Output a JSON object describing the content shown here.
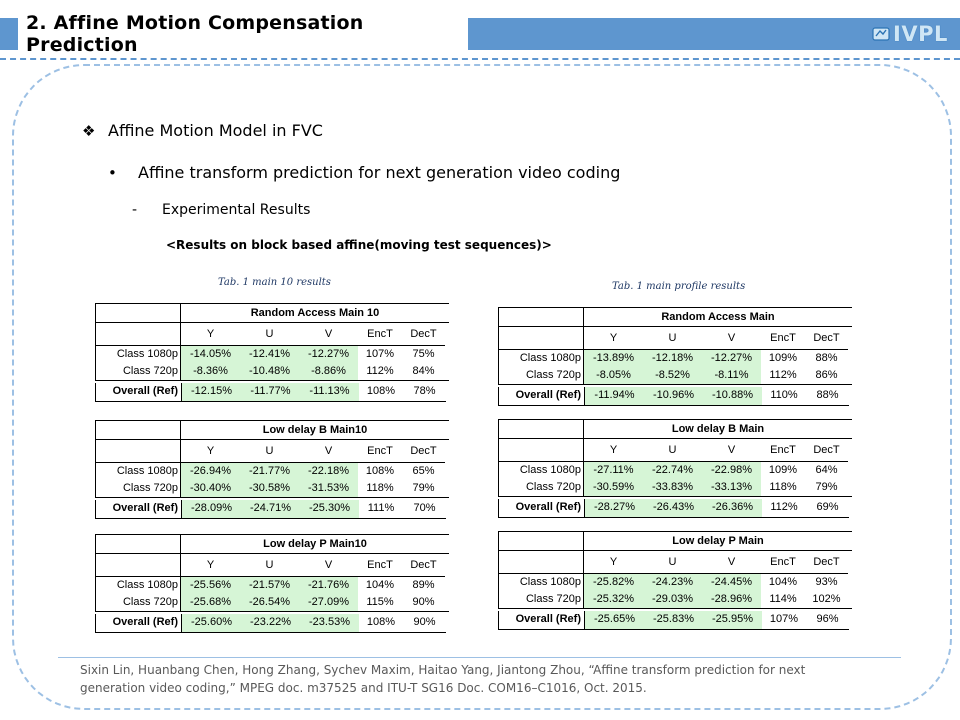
{
  "header": {
    "title": "2. Affine Motion Compensation Prediction",
    "logo": "IVPL",
    "accent_color": "#5e96cf"
  },
  "bullets": {
    "level1": {
      "mark": "❖",
      "text": "Affine Motion Model in FVC"
    },
    "level2": {
      "mark": "•",
      "text": "Affine transform prediction for next generation video coding"
    },
    "level3": {
      "mark": "-",
      "text": "Experimental Results"
    },
    "subhead": "<Results on block based affine(moving test sequences)>"
  },
  "captions": {
    "left": "Tab. 1 main 10 results",
    "right": "Tab. 1 main profile results"
  },
  "columns": [
    "Y",
    "U",
    "V",
    "EncT",
    "DecT"
  ],
  "tables": [
    {
      "name": "Random Access Main 10",
      "rows": [
        {
          "label": "Class 1080p",
          "values": [
            "-14.05%",
            "-12.41%",
            "-12.27%",
            "107%",
            "75%"
          ]
        },
        {
          "label": "Class 720p",
          "values": [
            "-8.36%",
            "-10.48%",
            "-8.86%",
            "112%",
            "84%"
          ]
        }
      ],
      "overall": {
        "label": "Overall (Ref)",
        "values": [
          "-12.15%",
          "-11.77%",
          "-11.13%",
          "108%",
          "78%"
        ]
      }
    },
    {
      "name": "Random Access Main",
      "rows": [
        {
          "label": "Class 1080p",
          "values": [
            "-13.89%",
            "-12.18%",
            "-12.27%",
            "109%",
            "88%"
          ]
        },
        {
          "label": "Class 720p",
          "values": [
            "-8.05%",
            "-8.52%",
            "-8.11%",
            "112%",
            "86%"
          ]
        }
      ],
      "overall": {
        "label": "Overall (Ref)",
        "values": [
          "-11.94%",
          "-10.96%",
          "-10.88%",
          "110%",
          "88%"
        ]
      }
    },
    {
      "name": "Low delay B Main10",
      "rows": [
        {
          "label": "Class 1080p",
          "values": [
            "-26.94%",
            "-21.77%",
            "-22.18%",
            "108%",
            "65%"
          ]
        },
        {
          "label": "Class 720p",
          "values": [
            "-30.40%",
            "-30.58%",
            "-31.53%",
            "118%",
            "79%"
          ]
        }
      ],
      "overall": {
        "label": "Overall (Ref)",
        "values": [
          "-28.09%",
          "-24.71%",
          "-25.30%",
          "111%",
          "70%"
        ]
      }
    },
    {
      "name": "Low delay B Main",
      "rows": [
        {
          "label": "Class 1080p",
          "values": [
            "-27.11%",
            "-22.74%",
            "-22.98%",
            "109%",
            "64%"
          ]
        },
        {
          "label": "Class 720p",
          "values": [
            "-30.59%",
            "-33.83%",
            "-33.13%",
            "118%",
            "79%"
          ]
        }
      ],
      "overall": {
        "label": "Overall (Ref)",
        "values": [
          "-28.27%",
          "-26.43%",
          "-26.36%",
          "112%",
          "69%"
        ]
      }
    },
    {
      "name": "Low delay P Main10",
      "rows": [
        {
          "label": "Class 1080p",
          "values": [
            "-25.56%",
            "-21.57%",
            "-21.76%",
            "104%",
            "89%"
          ]
        },
        {
          "label": "Class 720p",
          "values": [
            "-25.68%",
            "-26.54%",
            "-27.09%",
            "115%",
            "90%"
          ]
        }
      ],
      "overall": {
        "label": "Overall (Ref)",
        "values": [
          "-25.60%",
          "-23.22%",
          "-23.53%",
          "108%",
          "90%"
        ]
      }
    },
    {
      "name": "Low delay P Main",
      "rows": [
        {
          "label": "Class 1080p",
          "values": [
            "-25.82%",
            "-24.23%",
            "-24.45%",
            "104%",
            "93%"
          ]
        },
        {
          "label": "Class 720p",
          "values": [
            "-25.32%",
            "-29.03%",
            "-28.96%",
            "114%",
            "102%"
          ]
        }
      ],
      "overall": {
        "label": "Overall (Ref)",
        "values": [
          "-25.65%",
          "-25.83%",
          "-25.95%",
          "107%",
          "96%"
        ]
      }
    }
  ],
  "footer": {
    "line1": "Sixin Lin, Huanbang Chen, Hong Zhang, Sychev Maxim, Haitao Yang, Jiantong Zhou, “Affine transform prediction for next",
    "line2": "generation video coding,” MPEG doc. m37525  and ITU-T SG16 Doc. COM16–C1016, Oct. 2015."
  }
}
